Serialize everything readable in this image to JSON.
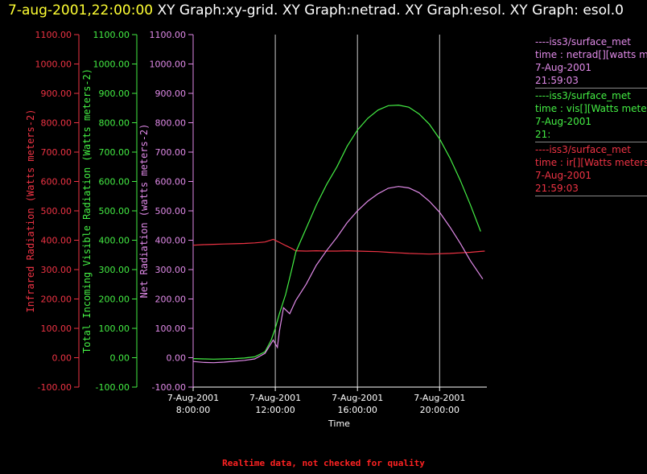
{
  "header": {
    "timestamp": "7-aug-2001,22:00:00",
    "titles": "XY Graph:xy-grid.  XY Graph:netrad.  XY Graph:esol.  XY Graph: esol.0"
  },
  "footer": {
    "note": "Realtime data, not checked for quality"
  },
  "legend": [
    {
      "name": "netrad",
      "color": "#e08ae8",
      "lines": [
        "----iss3/surface_met",
        "time : netrad[][watts me",
        "7-Aug-2001",
        "21:59:03"
      ]
    },
    {
      "name": "vis",
      "color": "#44ee44",
      "lines": [
        "----iss3/surface_met",
        "time : vis[][Watts meter",
        "7-Aug-2001",
        "21:"
      ]
    },
    {
      "name": "ir",
      "color": "#ee3344",
      "lines": [
        "----iss3/surface_met",
        "time : ir[][Watts meters",
        "7-Aug-2001",
        "21:59:03"
      ]
    }
  ],
  "chart_data": {
    "type": "line",
    "xlabel": "Time",
    "x_ticks": [
      {
        "value": 8,
        "date": "7-Aug-2001",
        "time": "8:00:00"
      },
      {
        "value": 12,
        "date": "7-Aug-2001",
        "time": "12:00:00"
      },
      {
        "value": 16,
        "date": "7-Aug-2001",
        "time": "16:00:00"
      },
      {
        "value": 20,
        "date": "7-Aug-2001",
        "time": "20:00:00"
      }
    ],
    "xlim": [
      8,
      22.3
    ],
    "vertical_gridlines_at": [
      12,
      16,
      20
    ],
    "axes": [
      {
        "id": "ir",
        "label": "Infrared Radiation (Watts meters-2)",
        "color": "#ee3344",
        "ylim": [
          -100,
          1100
        ],
        "ticks": [
          "-100.00",
          "0.00",
          "100.00",
          "200.00",
          "300.00",
          "400.00",
          "500.00",
          "600.00",
          "700.00",
          "800.00",
          "900.00",
          "1000.00",
          "1100.00"
        ]
      },
      {
        "id": "vis",
        "label": "Total Incoming Visible Radiation (Watts meters-2)",
        "color": "#44ee44",
        "ylim": [
          -100,
          1100
        ],
        "ticks": [
          "-100.00",
          "0.00",
          "100.00",
          "200.00",
          "300.00",
          "400.00",
          "500.00",
          "600.00",
          "700.00",
          "800.00",
          "900.00",
          "1000.00",
          "1100.00"
        ]
      },
      {
        "id": "netrad",
        "label": "Net Radiation (watts meters-2)",
        "color": "#e08ae8",
        "ylim": [
          -100,
          1100
        ],
        "ticks": [
          "-100.00",
          "0.00",
          "100.00",
          "200.00",
          "300.00",
          "400.00",
          "500.00",
          "600.00",
          "700.00",
          "800.00",
          "900.00",
          "1000.00",
          "1100.00"
        ]
      }
    ],
    "series": [
      {
        "name": "ir",
        "color": "#ee3344",
        "points": [
          [
            8.0,
            383
          ],
          [
            8.5,
            385
          ],
          [
            9.0,
            386
          ],
          [
            9.5,
            387
          ],
          [
            10.0,
            388
          ],
          [
            10.5,
            389
          ],
          [
            11.0,
            391
          ],
          [
            11.5,
            394
          ],
          [
            11.9,
            403
          ],
          [
            12.2,
            393
          ],
          [
            12.5,
            382
          ],
          [
            12.8,
            372
          ],
          [
            13.0,
            364
          ],
          [
            13.5,
            363
          ],
          [
            14.0,
            364
          ],
          [
            14.5,
            363
          ],
          [
            15.0,
            363
          ],
          [
            15.5,
            364
          ],
          [
            16.0,
            363
          ],
          [
            16.5,
            362
          ],
          [
            17.0,
            361
          ],
          [
            17.5,
            359
          ],
          [
            18.0,
            357
          ],
          [
            18.5,
            355
          ],
          [
            19.0,
            354
          ],
          [
            19.5,
            353
          ],
          [
            20.0,
            354
          ],
          [
            20.5,
            355
          ],
          [
            21.0,
            357
          ],
          [
            21.5,
            359
          ],
          [
            22.0,
            362
          ],
          [
            22.2,
            363
          ]
        ]
      },
      {
        "name": "vis",
        "color": "#44ee44",
        "points": [
          [
            8.0,
            -3
          ],
          [
            8.5,
            -4
          ],
          [
            9.0,
            -5
          ],
          [
            9.5,
            -4
          ],
          [
            10.0,
            -3
          ],
          [
            10.5,
            -1
          ],
          [
            11.0,
            3
          ],
          [
            11.5,
            20
          ],
          [
            11.8,
            60
          ],
          [
            12.0,
            100
          ],
          [
            12.2,
            150
          ],
          [
            12.5,
            215
          ],
          [
            12.8,
            300
          ],
          [
            13.0,
            360
          ],
          [
            13.5,
            440
          ],
          [
            14.0,
            520
          ],
          [
            14.5,
            590
          ],
          [
            15.0,
            650
          ],
          [
            15.5,
            720
          ],
          [
            16.0,
            775
          ],
          [
            16.5,
            815
          ],
          [
            17.0,
            843
          ],
          [
            17.5,
            858
          ],
          [
            18.0,
            860
          ],
          [
            18.5,
            853
          ],
          [
            19.0,
            830
          ],
          [
            19.5,
            795
          ],
          [
            20.0,
            745
          ],
          [
            20.5,
            680
          ],
          [
            21.0,
            605
          ],
          [
            21.5,
            520
          ],
          [
            22.0,
            430
          ]
        ]
      },
      {
        "name": "netrad",
        "color": "#e08ae8",
        "points": [
          [
            8.0,
            -13
          ],
          [
            8.5,
            -16
          ],
          [
            9.0,
            -17
          ],
          [
            9.5,
            -15
          ],
          [
            10.0,
            -12
          ],
          [
            10.5,
            -9
          ],
          [
            11.0,
            -4
          ],
          [
            11.5,
            15
          ],
          [
            11.9,
            60
          ],
          [
            12.1,
            35
          ],
          [
            12.2,
            90
          ],
          [
            12.4,
            170
          ],
          [
            12.7,
            150
          ],
          [
            13.0,
            195
          ],
          [
            13.5,
            250
          ],
          [
            14.0,
            315
          ],
          [
            14.5,
            365
          ],
          [
            15.0,
            410
          ],
          [
            15.5,
            460
          ],
          [
            16.0,
            500
          ],
          [
            16.5,
            533
          ],
          [
            17.0,
            558
          ],
          [
            17.5,
            577
          ],
          [
            18.0,
            583
          ],
          [
            18.5,
            578
          ],
          [
            19.0,
            562
          ],
          [
            19.5,
            533
          ],
          [
            20.0,
            495
          ],
          [
            20.5,
            445
          ],
          [
            21.0,
            390
          ],
          [
            21.5,
            330
          ],
          [
            22.1,
            268
          ]
        ]
      }
    ]
  }
}
